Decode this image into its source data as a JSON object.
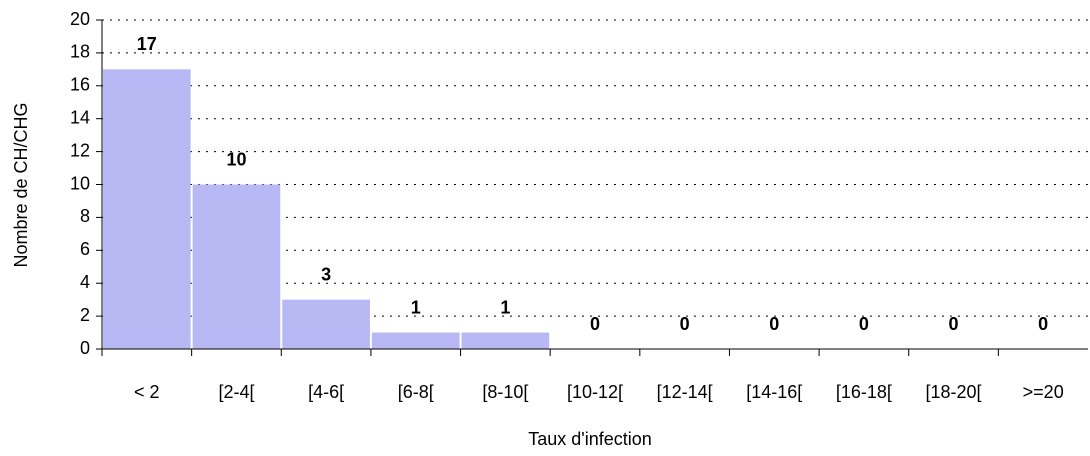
{
  "chart_data": {
    "type": "bar",
    "x_label": "Taux d'infection",
    "y_label": "Nombre de CH/CHG",
    "categories": [
      "< 2",
      "[2-4[",
      "[4-6[",
      "[6-8[",
      "[8-10[",
      "[10-12[",
      "[12-14[",
      "[14-16[",
      "[16-18[",
      "[18-20[",
      ">=20"
    ],
    "values": [
      17,
      10,
      3,
      1,
      1,
      0,
      0,
      0,
      0,
      0,
      0
    ],
    "color": "#b8b8f5",
    "ylim": [
      0,
      20
    ],
    "yticks": [
      0,
      2,
      4,
      6,
      8,
      10,
      12,
      14,
      16,
      18,
      20
    ],
    "grid": true
  }
}
